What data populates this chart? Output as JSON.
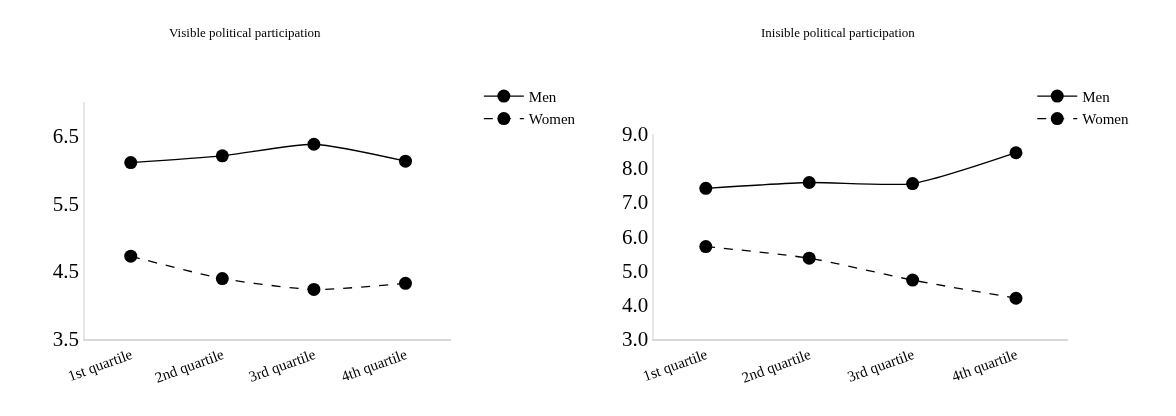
{
  "chart_data": [
    {
      "type": "line",
      "title": "Visible political participation",
      "categories": [
        "1st quartile",
        "2nd quartile",
        "3rd quartile",
        "4th quartile"
      ],
      "series": [
        {
          "name": "Men",
          "color": "#000000",
          "line_style": "solid",
          "values": [
            6.1,
            6.2,
            6.37,
            6.12
          ]
        },
        {
          "name": "Women",
          "color": "#000000",
          "line_style": "dashed",
          "values": [
            4.72,
            4.39,
            4.23,
            4.32
          ]
        }
      ],
      "ylim": [
        3.5,
        7.0
      ],
      "yticks": [
        3.5,
        4.5,
        5.5,
        6.5
      ],
      "marker": "circle",
      "legend": "top right",
      "grid": false
    },
    {
      "type": "line",
      "title": "Inisible political participation",
      "categories": [
        "1st quartile",
        "2nd quartile",
        "3rd quartile",
        "4th quartile"
      ],
      "series": [
        {
          "name": "Men",
          "color": "#000000",
          "line_style": "solid",
          "values": [
            7.4,
            7.57,
            7.54,
            8.44
          ]
        },
        {
          "name": "Women",
          "color": "#000000",
          "line_style": "dashed",
          "values": [
            5.7,
            5.36,
            4.72,
            4.19
          ]
        }
      ],
      "ylim": [
        3.0,
        9.0
      ],
      "yticks": [
        {
          "value": 3,
          "label": "3.0"
        },
        {
          "value": 4,
          "label": "4.0"
        },
        {
          "value": 5,
          "label": "5.0"
        },
        {
          "value": 6,
          "label": "6.0"
        },
        {
          "value": 7,
          "label": "7.0"
        },
        {
          "value": 8,
          "label": "8.0"
        },
        {
          "value": 9,
          "label": "9.0"
        }
      ],
      "marker": "circle",
      "legend": "top right",
      "grid": false
    }
  ]
}
